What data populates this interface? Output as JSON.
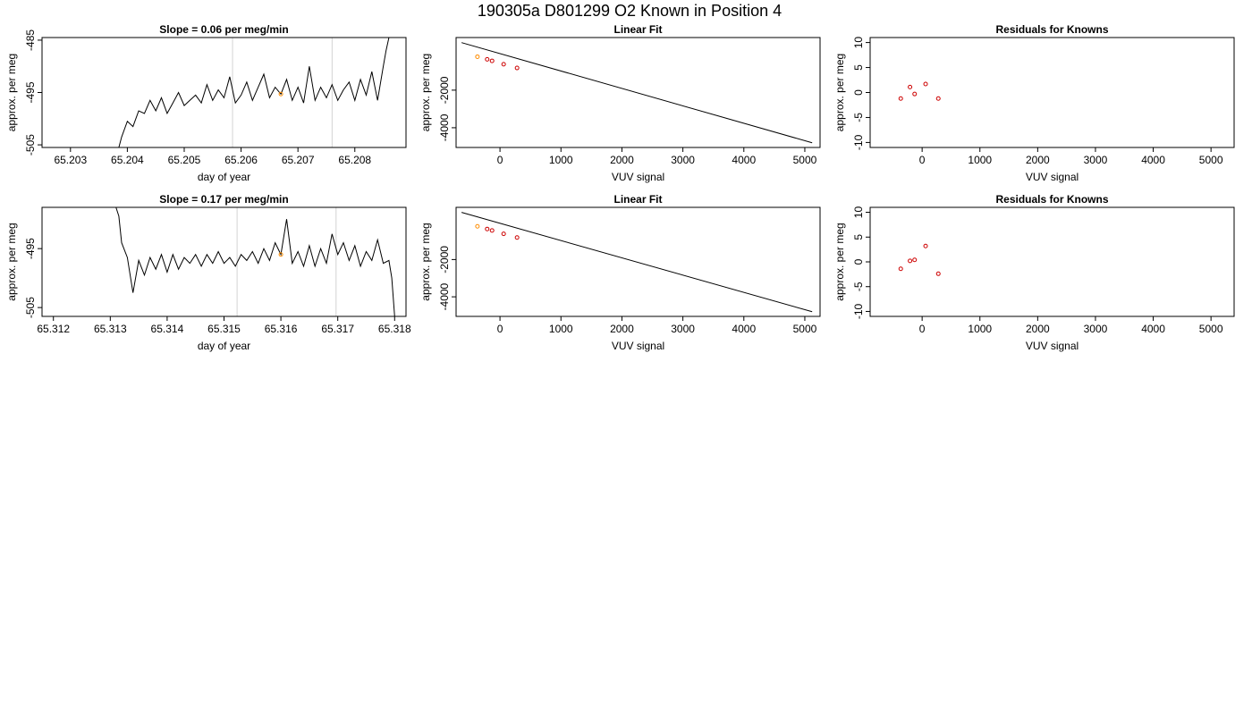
{
  "suptitle": "190305a     D801299   O2 Known in Position  4",
  "chart_data": [
    {
      "type": "line",
      "panel": "top-left",
      "title": "Slope =  0.06  per meg/min",
      "xlabel": "day of year",
      "ylabel": "approx. per meg",
      "xlim": [
        65.2025,
        65.2089
      ],
      "ylim": [
        -505.5,
        -484.5
      ],
      "xticks": [
        "65.203",
        "65.204",
        "65.205",
        "65.206",
        "65.207",
        "65.208"
      ],
      "xtick_values": [
        65.203,
        65.204,
        65.205,
        65.206,
        65.207,
        65.208
      ],
      "yticks": [
        "-505",
        "-495",
        "-485"
      ],
      "ytick_values": [
        -505,
        -495,
        -485
      ],
      "vlines": [
        65.20585,
        65.2076
      ],
      "vline_color": "#d3d3d3",
      "marker": {
        "x": 65.2067,
        "y": -495.3,
        "color": "#ff8c00"
      },
      "x": [
        65.20385,
        65.2039,
        65.204,
        65.2041,
        65.2042,
        65.2043,
        65.2044,
        65.2045,
        65.2046,
        65.2047,
        65.2048,
        65.2049,
        65.205,
        65.2051,
        65.2052,
        65.2053,
        65.2054,
        65.2055,
        65.2056,
        65.2057,
        65.2058,
        65.2059,
        65.206,
        65.2061,
        65.2062,
        65.2063,
        65.2064,
        65.2065,
        65.2066,
        65.2067,
        65.2068,
        65.2069,
        65.207,
        65.2071,
        65.2072,
        65.2073,
        65.2074,
        65.2075,
        65.2076,
        65.2077,
        65.2078,
        65.2079,
        65.208,
        65.2081,
        65.2082,
        65.2083,
        65.2084,
        65.2085,
        65.20855,
        65.2086
      ],
      "y": [
        -505.5,
        -503.5,
        -500.5,
        -501.5,
        -498.5,
        -499.0,
        -496.5,
        -498.5,
        -496.0,
        -499.0,
        -497.0,
        -495.0,
        -497.5,
        -496.5,
        -495.5,
        -497.0,
        -493.5,
        -496.5,
        -494.5,
        -496.0,
        -492.0,
        -497.0,
        -495.5,
        -493.0,
        -496.5,
        -494.0,
        -491.5,
        -496.0,
        -494.0,
        -495.3,
        -492.5,
        -496.5,
        -494.0,
        -497.0,
        -490.0,
        -496.5,
        -494.0,
        -496.0,
        -493.5,
        -496.5,
        -494.5,
        -493.0,
        -496.5,
        -492.5,
        -495.5,
        -491.0,
        -496.5,
        -490.0,
        -487.0,
        -484.5
      ]
    },
    {
      "type": "scatter",
      "panel": "top-middle",
      "title": "Linear Fit",
      "xlabel": "VUV signal",
      "ylabel": "approx. per meg",
      "xlim": [
        -720,
        5250
      ],
      "ylim": [
        -5050,
        800
      ],
      "xticks": [
        "0",
        "1000",
        "2000",
        "3000",
        "4000",
        "5000"
      ],
      "xtick_values": [
        0,
        1000,
        2000,
        3000,
        4000,
        5000
      ],
      "yticks": [
        "-4000",
        "-2000"
      ],
      "ytick_values": [
        -4000,
        -2000
      ],
      "fit_line": {
        "x": [
          -630,
          5120
        ],
        "y": [
          530,
          -4800
        ]
      },
      "points": {
        "x": [
          -370,
          -210,
          -130,
          60,
          280
        ],
        "y": [
          -220,
          -360,
          -440,
          -620,
          -820
        ],
        "colors": [
          "#ff8c00",
          "#cd0000",
          "#cd0000",
          "#cd0000",
          "#cd0000"
        ]
      }
    },
    {
      "type": "scatter",
      "panel": "top-right",
      "title": "Residuals for Knowns",
      "xlabel": "VUV signal",
      "ylabel": "approx. per meg",
      "xlim": [
        -900,
        5400
      ],
      "ylim": [
        -11,
        11
      ],
      "xticks": [
        "0",
        "1000",
        "2000",
        "3000",
        "4000",
        "5000"
      ],
      "xtick_values": [
        0,
        1000,
        2000,
        3000,
        4000,
        5000
      ],
      "yticks": [
        "-10",
        "-5",
        "0",
        "5",
        "10"
      ],
      "ytick_values": [
        -10,
        -5,
        0,
        5,
        10
      ],
      "points": {
        "x": [
          -370,
          -210,
          -130,
          60,
          280
        ],
        "y": [
          -1.2,
          1.1,
          -0.3,
          1.7,
          -1.2
        ],
        "colors": [
          "#cd0000",
          "#cd0000",
          "#cd0000",
          "#cd0000",
          "#cd0000"
        ]
      }
    },
    {
      "type": "line",
      "panel": "bottom-left",
      "title": "Slope =  0.17  per meg/min",
      "xlabel": "day of year",
      "ylabel": "approx. per meg",
      "xlim": [
        65.3118,
        65.3182
      ],
      "ylim": [
        -506.5,
        -488
      ],
      "xticks": [
        "65.312",
        "65.313",
        "65.314",
        "65.315",
        "65.316",
        "65.317",
        "65.318"
      ],
      "xtick_values": [
        65.312,
        65.313,
        65.314,
        65.315,
        65.316,
        65.317,
        65.318
      ],
      "yticks": [
        "-505",
        "-495"
      ],
      "ytick_values": [
        -505,
        -495
      ],
      "vlines": [
        65.31523,
        65.31697
      ],
      "vline_color": "#d3d3d3",
      "marker": {
        "x": 65.316,
        "y": -496.0,
        "color": "#ff8c00"
      },
      "x": [
        65.3131,
        65.31315,
        65.3132,
        65.3133,
        65.3134,
        65.3135,
        65.3136,
        65.3137,
        65.3138,
        65.3139,
        65.314,
        65.3141,
        65.3142,
        65.3143,
        65.3144,
        65.3145,
        65.3146,
        65.3147,
        65.3148,
        65.3149,
        65.315,
        65.3151,
        65.3152,
        65.3153,
        65.3154,
        65.3155,
        65.3156,
        65.3157,
        65.3158,
        65.3159,
        65.316,
        65.3161,
        65.3162,
        65.3163,
        65.3164,
        65.3165,
        65.3166,
        65.3167,
        65.3168,
        65.3169,
        65.317,
        65.3171,
        65.3172,
        65.3173,
        65.3174,
        65.3175,
        65.3176,
        65.3177,
        65.3178,
        65.3179,
        65.31795,
        65.318
      ],
      "y": [
        -488.0,
        -489.5,
        -494.0,
        -496.5,
        -502.5,
        -497.0,
        -499.5,
        -496.5,
        -498.5,
        -496.0,
        -499.0,
        -496.0,
        -498.5,
        -496.5,
        -497.5,
        -496.0,
        -498.0,
        -496.0,
        -497.5,
        -495.5,
        -497.5,
        -496.5,
        -498.0,
        -496.0,
        -497.0,
        -495.5,
        -497.5,
        -495.0,
        -497.0,
        -494.0,
        -496.0,
        -490.0,
        -497.5,
        -495.5,
        -498.0,
        -494.5,
        -498.0,
        -495.0,
        -497.5,
        -492.5,
        -496.0,
        -494.0,
        -497.0,
        -494.5,
        -498.0,
        -495.5,
        -497.0,
        -493.5,
        -497.5,
        -497.0,
        -500.0,
        -506.5
      ]
    },
    {
      "type": "scatter",
      "panel": "bottom-middle",
      "title": "Linear Fit",
      "xlabel": "VUV signal",
      "ylabel": "approx. per meg",
      "xlim": [
        -720,
        5250
      ],
      "ylim": [
        -5050,
        800
      ],
      "xticks": [
        "0",
        "1000",
        "2000",
        "3000",
        "4000",
        "5000"
      ],
      "xtick_values": [
        0,
        1000,
        2000,
        3000,
        4000,
        5000
      ],
      "yticks": [
        "-4000",
        "-2000"
      ],
      "ytick_values": [
        -4000,
        -2000
      ],
      "fit_line": {
        "x": [
          -630,
          5120
        ],
        "y": [
          530,
          -4800
        ]
      },
      "points": {
        "x": [
          -370,
          -210,
          -130,
          60,
          280
        ],
        "y": [
          -220,
          -360,
          -440,
          -620,
          -820
        ],
        "colors": [
          "#ff8c00",
          "#cd0000",
          "#cd0000",
          "#cd0000",
          "#cd0000"
        ]
      }
    },
    {
      "type": "scatter",
      "panel": "bottom-right",
      "title": "Residuals for Knowns",
      "xlabel": "VUV signal",
      "ylabel": "approx. per meg",
      "xlim": [
        -900,
        5400
      ],
      "ylim": [
        -11,
        11
      ],
      "xticks": [
        "0",
        "1000",
        "2000",
        "3000",
        "4000",
        "5000"
      ],
      "xtick_values": [
        0,
        1000,
        2000,
        3000,
        4000,
        5000
      ],
      "yticks": [
        "-10",
        "-5",
        "0",
        "5",
        "10"
      ],
      "ytick_values": [
        -10,
        -5,
        0,
        5,
        10
      ],
      "points": {
        "x": [
          -370,
          -210,
          -130,
          60,
          280
        ],
        "y": [
          -1.4,
          0.2,
          0.4,
          3.2,
          -2.4
        ],
        "colors": [
          "#cd0000",
          "#cd0000",
          "#cd0000",
          "#cd0000",
          "#cd0000"
        ]
      }
    }
  ]
}
